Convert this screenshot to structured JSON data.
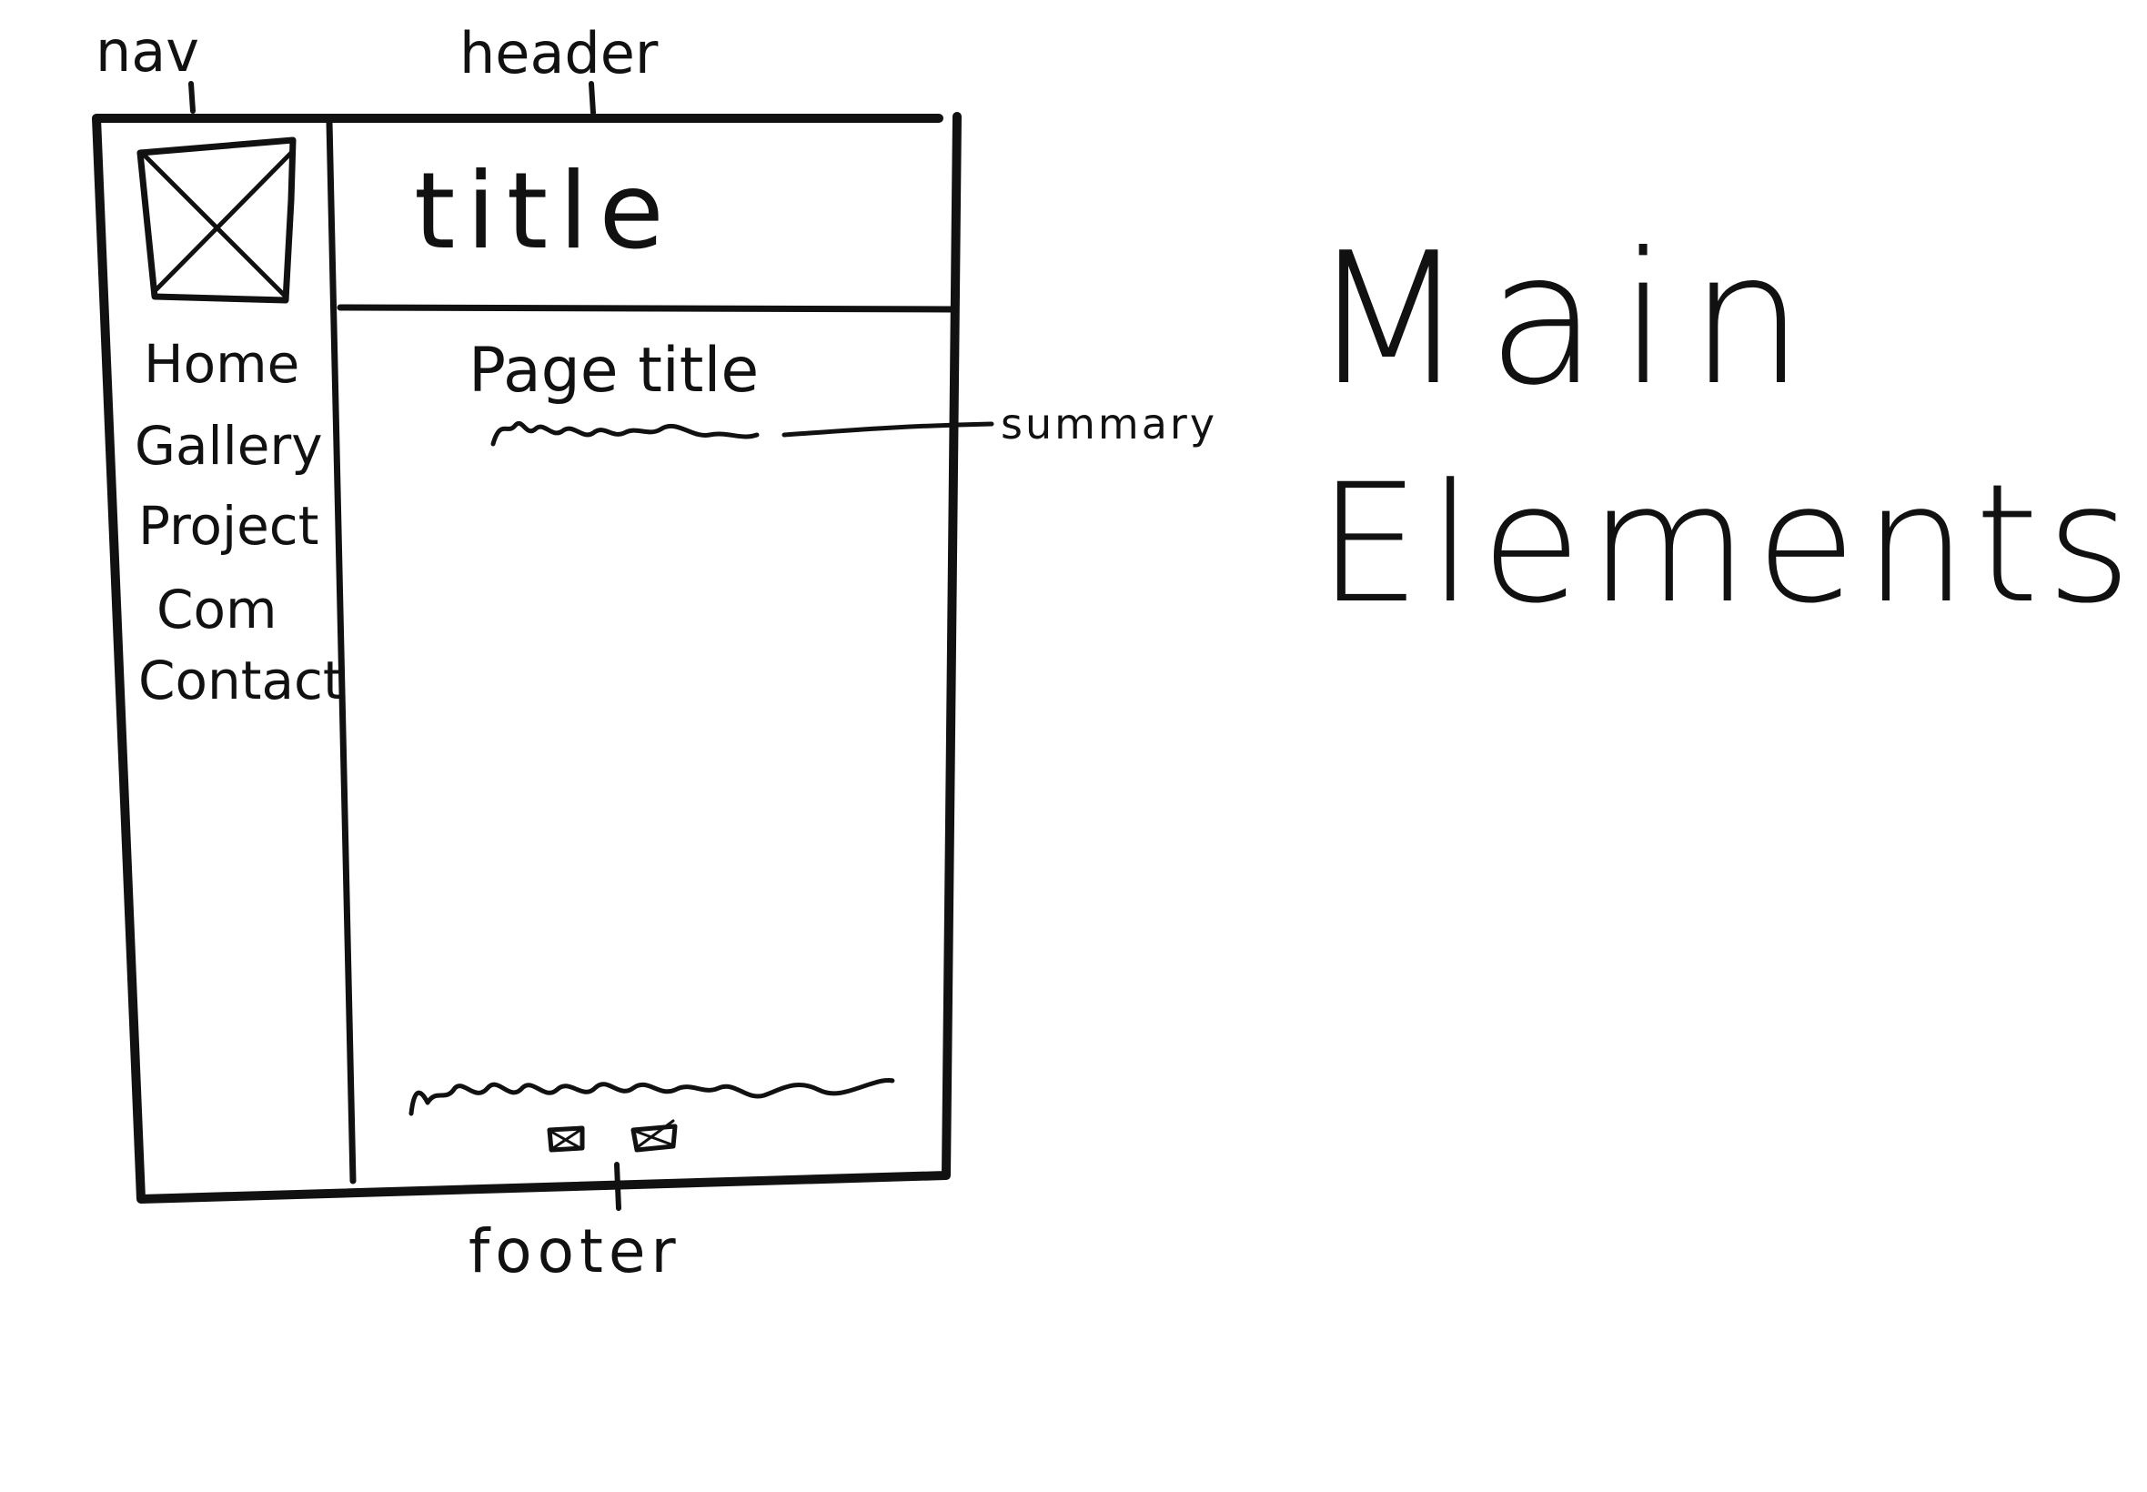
{
  "callouts": {
    "nav": "nav",
    "header": "header",
    "summary": "summary",
    "footer": "footer"
  },
  "header": {
    "title": "title"
  },
  "nav": {
    "logo_icon": "image-placeholder-icon",
    "items": [
      {
        "label": "Home"
      },
      {
        "label": "Gallery"
      },
      {
        "label": "Project"
      },
      {
        "label": "Com"
      },
      {
        "label": "Contact"
      }
    ]
  },
  "main": {
    "page_title": "Page title"
  },
  "footer": {
    "icons": [
      "image-placeholder-icon",
      "image-placeholder-icon"
    ]
  },
  "heading": {
    "line1": "Main",
    "line2": "Elements"
  },
  "colors": {
    "ink": "#111111",
    "paper": "#ffffff"
  }
}
